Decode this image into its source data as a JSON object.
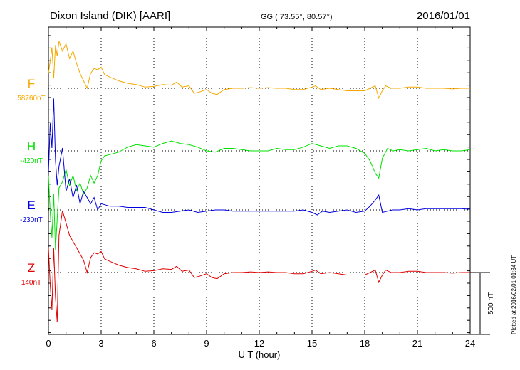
{
  "header": {
    "station": "Dixon Island (DIK)  [AARI]",
    "coords": "GG ( 73.55°,  80.57°)",
    "date": "2016/01/01"
  },
  "footer": {
    "plotted": "Plotted at 2016/02/01 01:34 UT"
  },
  "scale_bar": {
    "label": "500 nT",
    "value": 500
  },
  "chart_data": {
    "type": "line",
    "title": "Dixon Island (DIK)  [AARI]",
    "xlabel": "U T (hour)",
    "xlim": [
      0,
      24
    ],
    "xticks": [
      0,
      3,
      6,
      9,
      12,
      15,
      18,
      21,
      24
    ],
    "grid": true,
    "series": [
      {
        "name": "F",
        "baseline_label": "58760nT",
        "color": "#f5a800",
        "points": [
          [
            0,
            -120
          ],
          [
            0.1,
            -220
          ],
          [
            0.2,
            -330
          ],
          [
            0.3,
            -80
          ],
          [
            0.4,
            -350
          ],
          [
            0.5,
            -260
          ],
          [
            0.6,
            -380
          ],
          [
            0.8,
            -300
          ],
          [
            1.0,
            -360
          ],
          [
            1.2,
            -240
          ],
          [
            1.4,
            -300
          ],
          [
            1.6,
            -200
          ],
          [
            1.8,
            -120
          ],
          [
            2.0,
            -60
          ],
          [
            2.2,
            0
          ],
          [
            2.4,
            -120
          ],
          [
            2.6,
            -160
          ],
          [
            2.8,
            -150
          ],
          [
            3.0,
            -170
          ],
          [
            3.2,
            -110
          ],
          [
            3.5,
            -90
          ],
          [
            4.0,
            -60
          ],
          [
            4.5,
            -40
          ],
          [
            5.0,
            -30
          ],
          [
            5.5,
            -10
          ],
          [
            6.0,
            -15
          ],
          [
            6.5,
            -30
          ],
          [
            7.0,
            -25
          ],
          [
            7.3,
            -50
          ],
          [
            7.6,
            -10
          ],
          [
            8.0,
            -20
          ],
          [
            8.3,
            40
          ],
          [
            8.6,
            30
          ],
          [
            9.0,
            10
          ],
          [
            9.3,
            40
          ],
          [
            9.6,
            50
          ],
          [
            10.0,
            10
          ],
          [
            10.5,
            0
          ],
          [
            11.0,
            0
          ],
          [
            11.5,
            -5
          ],
          [
            12.0,
            0
          ],
          [
            12.5,
            -5
          ],
          [
            13.0,
            0
          ],
          [
            13.5,
            0
          ],
          [
            14.0,
            10
          ],
          [
            14.5,
            10
          ],
          [
            15.0,
            -10
          ],
          [
            15.2,
            -20
          ],
          [
            15.5,
            10
          ],
          [
            16.0,
            0
          ],
          [
            16.5,
            10
          ],
          [
            17.0,
            20
          ],
          [
            17.5,
            20
          ],
          [
            18.0,
            20
          ],
          [
            18.3,
            0
          ],
          [
            18.6,
            -20
          ],
          [
            18.8,
            80
          ],
          [
            19.0,
            20
          ],
          [
            19.2,
            -20
          ],
          [
            19.5,
            0
          ],
          [
            20.0,
            0
          ],
          [
            20.5,
            -10
          ],
          [
            21.0,
            -10
          ],
          [
            21.5,
            0
          ],
          [
            22.0,
            0
          ],
          [
            22.5,
            0
          ],
          [
            23.0,
            5
          ],
          [
            23.5,
            0
          ],
          [
            24.0,
            0
          ]
        ]
      },
      {
        "name": "H",
        "baseline_label": "-420nT",
        "color": "#00e000",
        "points": [
          [
            0,
            200
          ],
          [
            0.1,
            500
          ],
          [
            0.2,
            700
          ],
          [
            0.3,
            350
          ],
          [
            0.4,
            800
          ],
          [
            0.5,
            550
          ],
          [
            0.6,
            300
          ],
          [
            0.8,
            250
          ],
          [
            1.0,
            150
          ],
          [
            1.2,
            280
          ],
          [
            1.4,
            200
          ],
          [
            1.6,
            320
          ],
          [
            1.8,
            260
          ],
          [
            2.0,
            350
          ],
          [
            2.2,
            300
          ],
          [
            2.4,
            200
          ],
          [
            2.6,
            260
          ],
          [
            2.8,
            200
          ],
          [
            3.0,
            80
          ],
          [
            3.2,
            40
          ],
          [
            3.5,
            30
          ],
          [
            4.0,
            10
          ],
          [
            4.5,
            -30
          ],
          [
            5.0,
            -50
          ],
          [
            5.5,
            -40
          ],
          [
            6.0,
            -30
          ],
          [
            6.5,
            -60
          ],
          [
            7.0,
            -80
          ],
          [
            7.5,
            -60
          ],
          [
            8.0,
            -50
          ],
          [
            8.5,
            -30
          ],
          [
            9.0,
            0
          ],
          [
            9.5,
            10
          ],
          [
            10.0,
            -20
          ],
          [
            10.5,
            -20
          ],
          [
            11.0,
            -10
          ],
          [
            11.5,
            0
          ],
          [
            12.0,
            0
          ],
          [
            12.5,
            0
          ],
          [
            13.0,
            -20
          ],
          [
            13.5,
            -10
          ],
          [
            14.0,
            -10
          ],
          [
            14.5,
            -30
          ],
          [
            15.0,
            -60
          ],
          [
            15.5,
            -40
          ],
          [
            16.0,
            -20
          ],
          [
            16.5,
            -40
          ],
          [
            17.0,
            -40
          ],
          [
            17.5,
            -20
          ],
          [
            18.0,
            20
          ],
          [
            18.3,
            80
          ],
          [
            18.6,
            180
          ],
          [
            18.8,
            220
          ],
          [
            19.0,
            60
          ],
          [
            19.3,
            -20
          ],
          [
            19.6,
            0
          ],
          [
            20.0,
            -10
          ],
          [
            20.5,
            0
          ],
          [
            21.0,
            -10
          ],
          [
            21.5,
            -20
          ],
          [
            22.0,
            0
          ],
          [
            22.5,
            -10
          ],
          [
            23.0,
            0
          ],
          [
            23.5,
            0
          ],
          [
            24.0,
            -10
          ]
        ]
      },
      {
        "name": "E",
        "baseline_label": "-230nT",
        "color": "#0000dd",
        "points": [
          [
            0,
            -300
          ],
          [
            0.1,
            -700
          ],
          [
            0.2,
            -500
          ],
          [
            0.3,
            -900
          ],
          [
            0.4,
            -400
          ],
          [
            0.5,
            -200
          ],
          [
            0.6,
            -350
          ],
          [
            0.8,
            -500
          ],
          [
            1.0,
            -150
          ],
          [
            1.2,
            -250
          ],
          [
            1.4,
            -100
          ],
          [
            1.6,
            -200
          ],
          [
            1.8,
            -50
          ],
          [
            2.0,
            -150
          ],
          [
            2.2,
            -100
          ],
          [
            2.4,
            -50
          ],
          [
            2.6,
            -100
          ],
          [
            2.8,
            0
          ],
          [
            3.0,
            -50
          ],
          [
            3.5,
            -30
          ],
          [
            4.0,
            -30
          ],
          [
            4.5,
            -20
          ],
          [
            5.0,
            -20
          ],
          [
            5.5,
            -20
          ],
          [
            6.0,
            0
          ],
          [
            6.5,
            20
          ],
          [
            7.0,
            20
          ],
          [
            7.5,
            10
          ],
          [
            8.0,
            0
          ],
          [
            8.5,
            20
          ],
          [
            9.0,
            10
          ],
          [
            9.5,
            0
          ],
          [
            10.0,
            0
          ],
          [
            10.5,
            10
          ],
          [
            11.0,
            10
          ],
          [
            11.5,
            10
          ],
          [
            12.0,
            10
          ],
          [
            12.5,
            10
          ],
          [
            13.0,
            10
          ],
          [
            13.5,
            10
          ],
          [
            14.0,
            10
          ],
          [
            14.5,
            0
          ],
          [
            15.0,
            20
          ],
          [
            15.3,
            40
          ],
          [
            15.6,
            10
          ],
          [
            16.0,
            20
          ],
          [
            16.5,
            10
          ],
          [
            17.0,
            0
          ],
          [
            17.5,
            20
          ],
          [
            18.0,
            10
          ],
          [
            18.3,
            -30
          ],
          [
            18.6,
            -80
          ],
          [
            18.8,
            -120
          ],
          [
            19.0,
            20
          ],
          [
            19.3,
            10
          ],
          [
            19.6,
            0
          ],
          [
            20.0,
            0
          ],
          [
            20.5,
            -10
          ],
          [
            21.0,
            0
          ],
          [
            21.5,
            -10
          ],
          [
            22.0,
            -10
          ],
          [
            22.5,
            -10
          ],
          [
            23.0,
            -10
          ],
          [
            23.5,
            -10
          ],
          [
            24.0,
            -5
          ]
        ]
      },
      {
        "name": "Z",
        "baseline_label": "140nT",
        "color": "#e00000",
        "points": [
          [
            0,
            -200
          ],
          [
            0.1,
            100
          ],
          [
            0.2,
            300
          ],
          [
            0.3,
            -200
          ],
          [
            0.4,
            200
          ],
          [
            0.5,
            400
          ],
          [
            0.6,
            -300
          ],
          [
            0.8,
            -500
          ],
          [
            1.0,
            -400
          ],
          [
            1.2,
            -300
          ],
          [
            1.4,
            -250
          ],
          [
            1.6,
            -200
          ],
          [
            1.8,
            -150
          ],
          [
            2.0,
            -100
          ],
          [
            2.2,
            0
          ],
          [
            2.4,
            -120
          ],
          [
            2.6,
            -160
          ],
          [
            2.8,
            -150
          ],
          [
            3.0,
            -170
          ],
          [
            3.2,
            -110
          ],
          [
            3.5,
            -90
          ],
          [
            4.0,
            -60
          ],
          [
            4.5,
            -40
          ],
          [
            5.0,
            -30
          ],
          [
            5.5,
            -10
          ],
          [
            6.0,
            -15
          ],
          [
            6.5,
            -30
          ],
          [
            7.0,
            -25
          ],
          [
            7.3,
            -50
          ],
          [
            7.6,
            -10
          ],
          [
            8.0,
            -20
          ],
          [
            8.3,
            40
          ],
          [
            8.6,
            30
          ],
          [
            9.0,
            10
          ],
          [
            9.3,
            40
          ],
          [
            9.6,
            50
          ],
          [
            10.0,
            10
          ],
          [
            10.5,
            0
          ],
          [
            11.0,
            0
          ],
          [
            11.5,
            -5
          ],
          [
            12.0,
            0
          ],
          [
            12.5,
            -5
          ],
          [
            13.0,
            0
          ],
          [
            13.5,
            0
          ],
          [
            14.0,
            10
          ],
          [
            14.5,
            10
          ],
          [
            15.0,
            -10
          ],
          [
            15.2,
            -20
          ],
          [
            15.5,
            10
          ],
          [
            16.0,
            0
          ],
          [
            16.5,
            10
          ],
          [
            17.0,
            20
          ],
          [
            17.5,
            20
          ],
          [
            18.0,
            20
          ],
          [
            18.3,
            0
          ],
          [
            18.6,
            -20
          ],
          [
            18.8,
            80
          ],
          [
            19.0,
            20
          ],
          [
            19.2,
            -20
          ],
          [
            19.5,
            0
          ],
          [
            20.0,
            0
          ],
          [
            20.5,
            -10
          ],
          [
            21.0,
            -10
          ],
          [
            21.5,
            0
          ],
          [
            22.0,
            0
          ],
          [
            22.5,
            0
          ],
          [
            23.0,
            5
          ],
          [
            23.5,
            0
          ],
          [
            24.0,
            0
          ]
        ]
      }
    ]
  }
}
